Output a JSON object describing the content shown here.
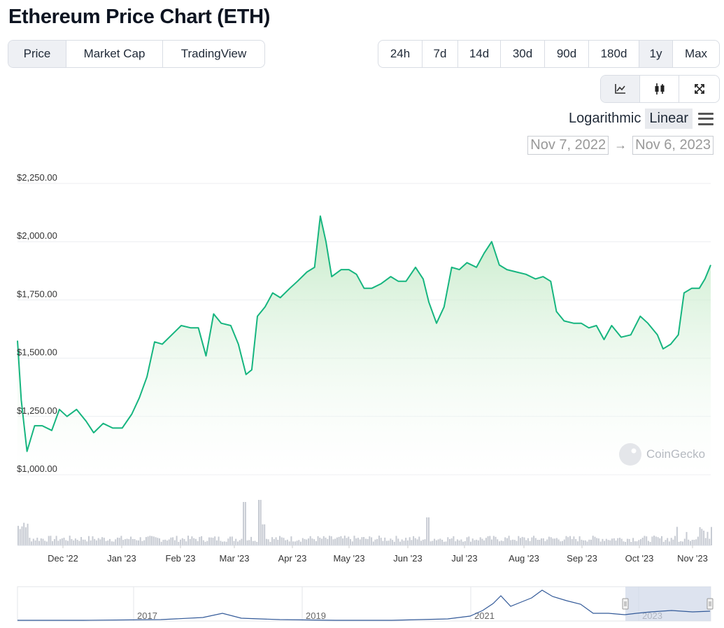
{
  "page": {
    "title": "Ethereum Price Chart (ETH)"
  },
  "type_tabs": [
    {
      "label": "Price",
      "active": true
    },
    {
      "label": "Market Cap",
      "active": false
    },
    {
      "label": "TradingView",
      "active": false
    }
  ],
  "range_tabs": [
    {
      "label": "24h",
      "active": false
    },
    {
      "label": "7d",
      "active": false
    },
    {
      "label": "14d",
      "active": false
    },
    {
      "label": "30d",
      "active": false
    },
    {
      "label": "90d",
      "active": false
    },
    {
      "label": "180d",
      "active": false
    },
    {
      "label": "1y",
      "active": true
    },
    {
      "label": "Max",
      "active": false
    }
  ],
  "view_icons": [
    "line-chart-icon",
    "candlestick-icon",
    "expand-icon"
  ],
  "scale": {
    "log_label": "Logarithmic",
    "linear_label": "Linear",
    "active": "linear"
  },
  "date_range": {
    "from": "Nov 7, 2022",
    "to": "Nov 6, 2023"
  },
  "watermark": "CoinGecko",
  "colors": {
    "line": "#16b57f",
    "fill": "#c6ecc8",
    "volume": "#c7cbd3",
    "navigator": "#335a99"
  },
  "chart_data": {
    "type": "area",
    "y_tick_labels": [
      "$2,250.00",
      "$2,000.00",
      "$1,750.00",
      "$1,500.00",
      "$1,250.00",
      "$1,000.00"
    ],
    "ylim": [
      1000,
      2250
    ],
    "x_tick_labels": [
      "Dec '22",
      "Jan '23",
      "Feb '23",
      "Mar '23",
      "Apr '23",
      "May '23",
      "Jun '23",
      "Jul '23",
      "Aug '23",
      "Sep '23",
      "Oct '23",
      "Nov '23"
    ],
    "x": [
      "2022-11-07",
      "2022-11-09",
      "2022-11-12",
      "2022-11-16",
      "2022-11-20",
      "2022-11-25",
      "2022-11-29",
      "2022-12-03",
      "2022-12-08",
      "2022-12-13",
      "2022-12-17",
      "2022-12-22",
      "2022-12-27",
      "2023-01-01",
      "2023-01-06",
      "2023-01-10",
      "2023-01-14",
      "2023-01-18",
      "2023-01-22",
      "2023-01-27",
      "2023-02-01",
      "2023-02-06",
      "2023-02-10",
      "2023-02-14",
      "2023-02-18",
      "2023-02-22",
      "2023-02-27",
      "2023-03-03",
      "2023-03-07",
      "2023-03-10",
      "2023-03-13",
      "2023-03-17",
      "2023-03-21",
      "2023-03-25",
      "2023-03-30",
      "2023-04-03",
      "2023-04-08",
      "2023-04-12",
      "2023-04-15",
      "2023-04-18",
      "2023-04-21",
      "2023-04-26",
      "2023-04-30",
      "2023-05-04",
      "2023-05-08",
      "2023-05-12",
      "2023-05-17",
      "2023-05-22",
      "2023-05-26",
      "2023-05-30",
      "2023-06-04",
      "2023-06-08",
      "2023-06-11",
      "2023-06-15",
      "2023-06-19",
      "2023-06-23",
      "2023-06-27",
      "2023-07-01",
      "2023-07-06",
      "2023-07-10",
      "2023-07-14",
      "2023-07-18",
      "2023-07-22",
      "2023-07-27",
      "2023-08-01",
      "2023-08-06",
      "2023-08-10",
      "2023-08-14",
      "2023-08-17",
      "2023-08-21",
      "2023-08-26",
      "2023-08-30",
      "2023-09-03",
      "2023-09-07",
      "2023-09-11",
      "2023-09-15",
      "2023-09-20",
      "2023-09-25",
      "2023-09-30",
      "2023-10-04",
      "2023-10-09",
      "2023-10-12",
      "2023-10-16",
      "2023-10-20",
      "2023-10-23",
      "2023-10-27",
      "2023-10-31",
      "2023-11-03",
      "2023-11-06"
    ],
    "series": [
      {
        "values": [
          1575,
          1320,
          1100,
          1210,
          1210,
          1190,
          1280,
          1250,
          1280,
          1230,
          1180,
          1220,
          1200,
          1200,
          1260,
          1330,
          1420,
          1570,
          1560,
          1600,
          1640,
          1630,
          1630,
          1510,
          1690,
          1650,
          1640,
          1560,
          1430,
          1450,
          1680,
          1720,
          1780,
          1760,
          1800,
          1830,
          1870,
          1890,
          2110,
          2000,
          1850,
          1880,
          1880,
          1860,
          1800,
          1800,
          1820,
          1850,
          1830,
          1830,
          1890,
          1840,
          1740,
          1650,
          1720,
          1890,
          1880,
          1910,
          1890,
          1950,
          2000,
          1900,
          1880,
          1870,
          1860,
          1840,
          1850,
          1830,
          1700,
          1660,
          1650,
          1650,
          1630,
          1640,
          1580,
          1640,
          1590,
          1600,
          1680,
          1650,
          1600,
          1540,
          1560,
          1600,
          1780,
          1800,
          1800,
          1840,
          1900
        ]
      }
    ],
    "volume_tick_note": "",
    "navigator_tick_labels": [
      "2017",
      "2019",
      "2021",
      "2023"
    ]
  }
}
